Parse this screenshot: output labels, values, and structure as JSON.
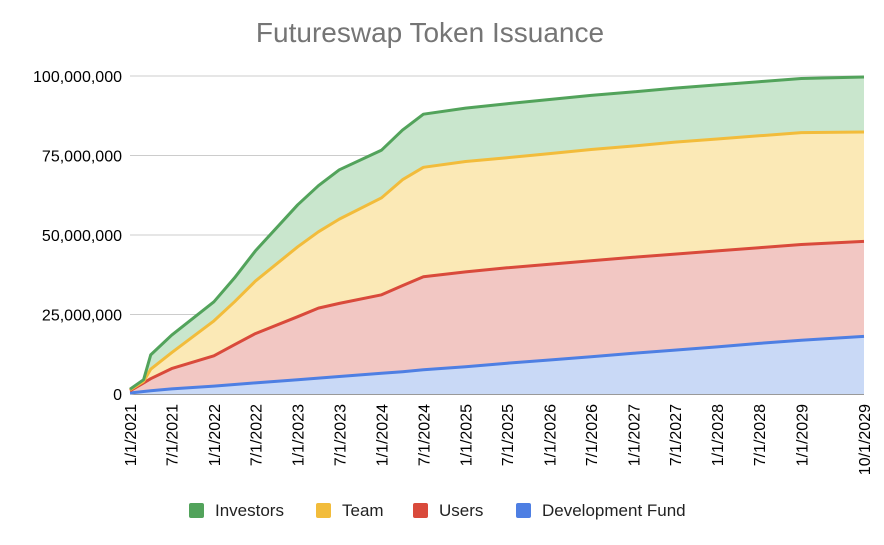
{
  "chart_data": {
    "type": "area",
    "stacked": true,
    "title": "Futureswap Token Issuance",
    "xlabel": "",
    "ylabel": "",
    "ylim": [
      0,
      100000000
    ],
    "yticks": [
      "0",
      "25,000,000",
      "50,000,000",
      "75,000,000",
      "100,000,000"
    ],
    "ytick_values": [
      0,
      25000000,
      50000000,
      75000000,
      100000000
    ],
    "xticks": [
      "1/1/2021",
      "7/1/2021",
      "1/1/2022",
      "7/1/2022",
      "1/1/2023",
      "7/1/2023",
      "1/1/2024",
      "7/1/2024",
      "1/1/2025",
      "7/1/2025",
      "1/1/2026",
      "7/1/2026",
      "1/1/2027",
      "7/1/2027",
      "1/1/2028",
      "7/1/2028",
      "1/1/2029",
      "10/1/2029"
    ],
    "x": [
      "1/1/2021",
      "3/1/2021",
      "4/1/2021",
      "7/1/2021",
      "1/1/2022",
      "4/1/2022",
      "7/1/2022",
      "1/1/2023",
      "4/1/2023",
      "7/1/2023",
      "1/1/2024",
      "4/1/2024",
      "7/1/2024",
      "1/1/2025",
      "7/1/2025",
      "1/1/2026",
      "7/1/2026",
      "1/1/2027",
      "7/1/2027",
      "1/1/2028",
      "7/1/2028",
      "1/1/2029",
      "10/1/2029"
    ],
    "grid": true,
    "legend_position": "bottom",
    "series": [
      {
        "name": "Development Fund",
        "color": "#4e7fe3",
        "fill": "#c9d9f6",
        "values": [
          300000,
          800000,
          1000000,
          1600000,
          2500000,
          3000000,
          3500000,
          4500000,
          5000000,
          5500000,
          6500000,
          7000000,
          7600000,
          8600000,
          9700000,
          10700000,
          11700000,
          12800000,
          13800000,
          14800000,
          15900000,
          16900000,
          18100000
        ]
      },
      {
        "name": "Users",
        "color": "#d94a3b",
        "fill": "#f2c7c3",
        "values": [
          700000,
          2700000,
          3800000,
          6400000,
          9500000,
          12500000,
          15500000,
          19800000,
          22000000,
          23000000,
          24700000,
          27100000,
          29300000,
          29800000,
          30000000,
          30100000,
          30200000,
          30200000,
          30200000,
          30200000,
          30100000,
          30100000,
          29900000
        ]
      },
      {
        "name": "Team",
        "color": "#f2bc3b",
        "fill": "#fbe9b6",
        "values": [
          300000,
          500000,
          3000000,
          5000000,
          11000000,
          13500000,
          16500000,
          22000000,
          24000000,
          26500000,
          30500000,
          33300000,
          34400000,
          34700000,
          34600000,
          34800000,
          35000000,
          35000000,
          35200000,
          35200000,
          35200000,
          35200000,
          34400000
        ]
      },
      {
        "name": "Investors",
        "color": "#52a35b",
        "fill": "#c9e6cd",
        "values": [
          200000,
          500000,
          4500000,
          5500000,
          6000000,
          7500000,
          9500000,
          13200000,
          14500000,
          15500000,
          15000000,
          15600000,
          16700000,
          16800000,
          17000000,
          17000000,
          17000000,
          17000000,
          17000000,
          17000000,
          17000000,
          17000000,
          17300000
        ]
      }
    ]
  }
}
